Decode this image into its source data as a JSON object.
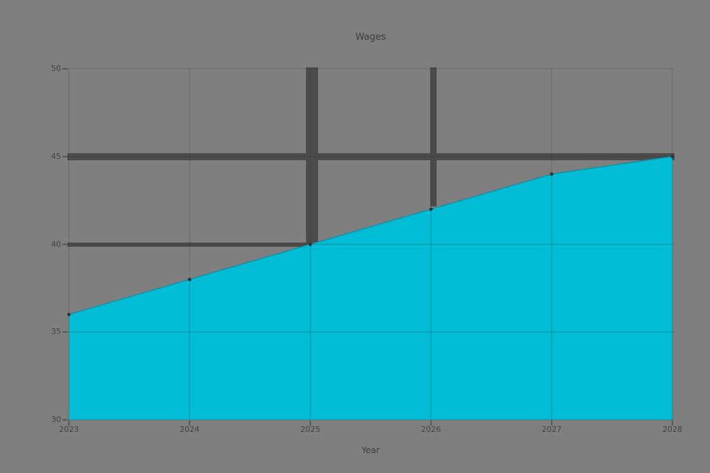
{
  "colors": {
    "background": "#7f7f7f",
    "area_fill": "#00bcd4",
    "line": "#0d93a8",
    "marker": "#333333",
    "grid": "rgba(45,45,45,0.28)",
    "tick": "#4a4a4a",
    "glitch_bar": "#4b4b4b",
    "text": "#3d3d3d"
  },
  "chart_data": {
    "type": "area",
    "title": "Wages",
    "xlabel": "Year",
    "ylabel": "",
    "x": [
      2023,
      2024,
      2025,
      2026,
      2027,
      2028
    ],
    "x_ticks": [
      "2023",
      "2024",
      "2025",
      "2026",
      "2027",
      "2028"
    ],
    "values": [
      36,
      38,
      40,
      42,
      44,
      45
    ],
    "y_ticks": [
      30,
      35,
      40,
      45,
      50
    ],
    "ylim": [
      30,
      50
    ],
    "grid": true,
    "legend": "none",
    "series_name": "Wages"
  }
}
